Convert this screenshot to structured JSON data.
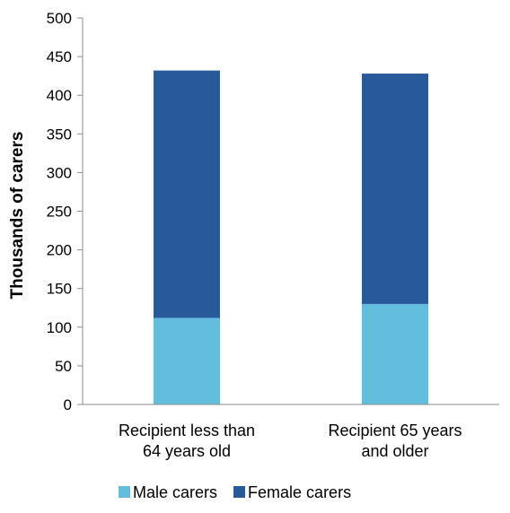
{
  "chart_data": {
    "type": "bar",
    "stacked": true,
    "title": "",
    "xlabel": "",
    "ylabel": "Thousands of carers",
    "ylim": [
      0,
      500
    ],
    "yticks": [
      0,
      50,
      100,
      150,
      200,
      250,
      300,
      350,
      400,
      450,
      500
    ],
    "categories": [
      [
        "Recipient less than",
        "64 years old"
      ],
      [
        "Recipient 65 years",
        "and older"
      ]
    ],
    "series": [
      {
        "name": "Male carers",
        "color": "#63bddd",
        "values": [
          112,
          130
        ]
      },
      {
        "name": "Female carers",
        "color": "#285a9a",
        "values": [
          320,
          298
        ]
      }
    ],
    "grid": false,
    "legend": "bottom"
  }
}
